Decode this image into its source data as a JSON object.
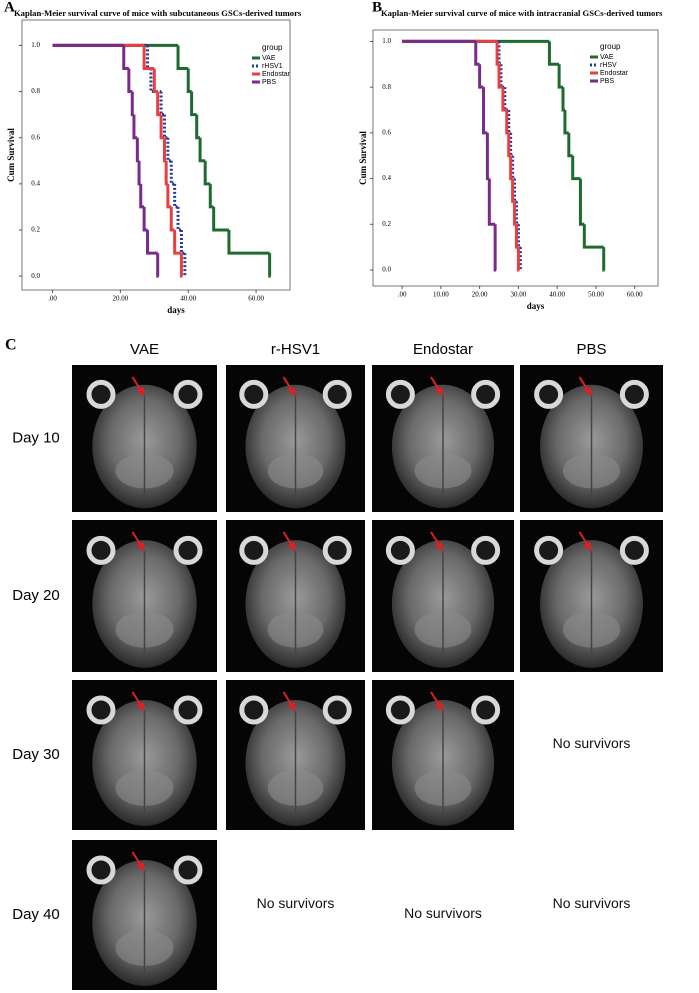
{
  "chart_data": [
    {
      "type": "step",
      "panel": "A",
      "title": "Kaplan-Meier survival curve of mice with subcutaneous GSCs-derived tumors",
      "x_label": "days",
      "y_label": "Cum Survival",
      "legend_title": "group",
      "xlim": [
        -9,
        70
      ],
      "ylim": [
        -0.06,
        1.11
      ],
      "xticks": [
        {
          "value": 0,
          "label": ".00"
        },
        {
          "value": 20,
          "label": "20.00"
        },
        {
          "value": 40,
          "label": "40.00"
        },
        {
          "value": 60,
          "label": "60.00"
        }
      ],
      "yticks": [
        {
          "value": 0,
          "label": "0.0"
        },
        0.2,
        0.4,
        0.6,
        0.8,
        {
          "value": 1,
          "label": "1.0"
        }
      ],
      "series": [
        {
          "name": "VAE",
          "color": "#1e6b30",
          "style": "solid",
          "x": [
            0,
            37,
            40,
            41,
            42.5,
            43.5,
            45,
            46.5,
            47.5,
            52,
            64
          ],
          "values": [
            1,
            0.9,
            0.8,
            0.7,
            0.6,
            0.5,
            0.4,
            0.3,
            0.2,
            0.1,
            0
          ]
        },
        {
          "name": "rHSV1",
          "color": "#1f3aa0",
          "style": "dotted",
          "x": [
            0,
            28,
            29,
            32,
            33,
            34,
            35,
            36,
            37,
            38,
            39
          ],
          "values": [
            1,
            0.9,
            0.8,
            0.7,
            0.6,
            0.5,
            0.4,
            0.3,
            0.2,
            0.1,
            0
          ]
        },
        {
          "name": "Endostar",
          "color": "#e84040",
          "style": "solid",
          "x": [
            0,
            27,
            30,
            31,
            32,
            33,
            33.5,
            34,
            35,
            36,
            38
          ],
          "values": [
            1,
            0.9,
            0.8,
            0.7,
            0.6,
            0.5,
            0.4,
            0.3,
            0.2,
            0.1,
            0
          ]
        },
        {
          "name": "PBS",
          "color": "#7a2a8a",
          "style": "solid",
          "x": [
            0,
            21,
            22.5,
            23.5,
            24,
            25,
            25.5,
            26,
            27,
            28,
            31
          ],
          "values": [
            1,
            0.9,
            0.8,
            0.7,
            0.6,
            0.5,
            0.4,
            0.3,
            0.2,
            0.1,
            0
          ]
        }
      ]
    },
    {
      "type": "step",
      "panel": "B",
      "title": "Kaplan-Meier survival curve of mice with intracranial GSCs-derived tumors",
      "x_label": "days",
      "y_label": "Cum Survival",
      "legend_title": "group",
      "xlim": [
        -7.5,
        66
      ],
      "ylim": [
        -0.07,
        1.05
      ],
      "xticks": [
        {
          "value": 0,
          "label": ".00"
        },
        {
          "value": 10,
          "label": "10.00"
        },
        {
          "value": 20,
          "label": "20.00"
        },
        {
          "value": 30,
          "label": "30.00"
        },
        {
          "value": 40,
          "label": "40.00"
        },
        {
          "value": 50,
          "label": "50.00"
        },
        {
          "value": 60,
          "label": "60.00"
        }
      ],
      "yticks": [
        {
          "value": 0,
          "label": "0.0"
        },
        0.2,
        0.4,
        0.6,
        0.8,
        {
          "value": 1,
          "label": "1.0"
        }
      ],
      "series": [
        {
          "name": "VAE",
          "color": "#1e6b30",
          "style": "solid",
          "x": [
            0,
            38,
            40.5,
            41.5,
            42,
            43,
            44,
            46,
            47,
            52
          ],
          "values": [
            1,
            0.9,
            0.8,
            0.7,
            0.6,
            0.5,
            0.4,
            0.2,
            0.1,
            0
          ]
        },
        {
          "name": "rHSV",
          "color": "#1f3aa0",
          "style": "dotted",
          "x": [
            0,
            25,
            25.5,
            26.5,
            27.5,
            28,
            28.5,
            29,
            29.5,
            30,
            30.5
          ],
          "values": [
            1,
            0.9,
            0.8,
            0.7,
            0.6,
            0.5,
            0.4,
            0.3,
            0.2,
            0.1,
            0
          ]
        },
        {
          "name": "Endostar",
          "color": "#e84040",
          "style": "solid",
          "x": [
            0,
            24.5,
            25,
            26,
            27,
            27.5,
            28,
            28.5,
            29,
            29.5,
            30
          ],
          "values": [
            1,
            0.9,
            0.8,
            0.7,
            0.6,
            0.5,
            0.4,
            0.3,
            0.2,
            0.1,
            0
          ]
        },
        {
          "name": "PBS",
          "color": "#7a2a8a",
          "style": "solid",
          "x": [
            0,
            19,
            20,
            21,
            22,
            22.5,
            24
          ],
          "values": [
            1,
            0.9,
            0.8,
            0.6,
            0.4,
            0.2,
            0
          ]
        }
      ]
    }
  ],
  "panel_c": {
    "label": "C",
    "columns": [
      "VAE",
      "r-HSV1",
      "Endostar",
      "PBS"
    ],
    "rows": [
      {
        "label": "Day 10",
        "cells": [
          null,
          null,
          null,
          null
        ]
      },
      {
        "label": "Day 20",
        "cells": [
          null,
          null,
          null,
          null
        ]
      },
      {
        "label": "Day 30",
        "cells": [
          null,
          null,
          null,
          "No survivors"
        ]
      },
      {
        "label": "Day 40",
        "cells": [
          null,
          "No survivors",
          "No survivors",
          "No survivors"
        ]
      }
    ]
  }
}
